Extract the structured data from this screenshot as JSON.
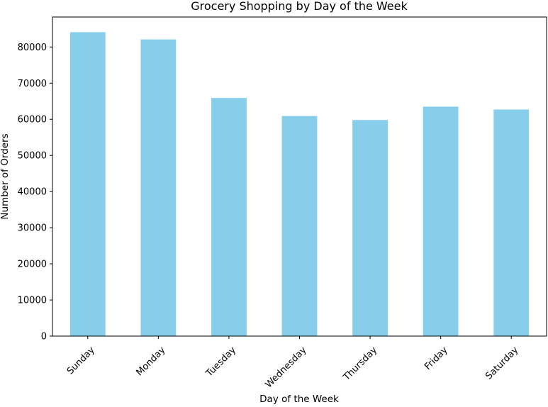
{
  "chart_data": {
    "type": "bar",
    "title": "Grocery Shopping by Day of the Week",
    "xlabel": "Day of the Week",
    "ylabel": "Number of Orders",
    "categories": [
      "Sunday",
      "Monday",
      "Tuesday",
      "Wednesday",
      "Thursday",
      "Friday",
      "Saturday"
    ],
    "values": [
      84100,
      82100,
      65900,
      60900,
      59800,
      63500,
      62700
    ],
    "ylim": [
      0,
      88300
    ],
    "yticks": [
      0,
      10000,
      20000,
      30000,
      40000,
      50000,
      60000,
      70000,
      80000
    ],
    "xtick_rotation_deg": 45,
    "grid": false,
    "legend": "none",
    "bar_color": "#87CEEB",
    "axis_color": "#000000"
  }
}
